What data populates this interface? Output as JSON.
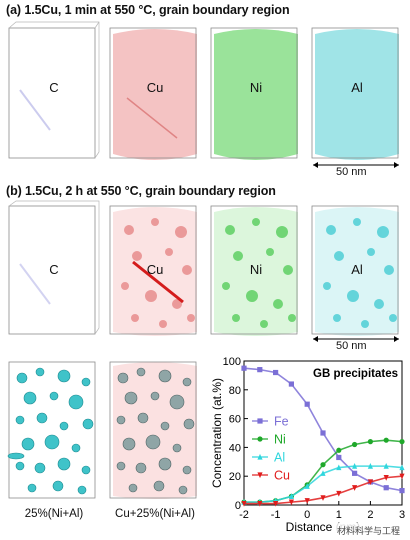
{
  "panel_a": {
    "title": "(a) 1.5Cu, 1 min at 550 °C, grain boundary region",
    "boxes": [
      {
        "label": "C",
        "color": "#6d6dcf"
      },
      {
        "label": "Cu",
        "color": "#e46b6b"
      },
      {
        "label": "Ni",
        "color": "#3fbf45"
      },
      {
        "label": "Al",
        "color": "#45c8cf"
      }
    ],
    "scalebar": "50 nm"
  },
  "panel_b": {
    "title": "(b) 1.5Cu, 2 h at 550 °C, grain boundary region",
    "boxes": [
      {
        "label": "C",
        "color": "#6d6dcf"
      },
      {
        "label": "Cu",
        "color": "#e44848"
      },
      {
        "label": "Ni",
        "color": "#3fbf45"
      },
      {
        "label": "Al",
        "color": "#38c3cc"
      }
    ],
    "scalebar": "50 nm",
    "isosurfaces": [
      {
        "caption": "25%(Ni+Al)"
      },
      {
        "caption": "Cu+25%(Ni+Al)"
      }
    ]
  },
  "watermark": "材料科学与工程",
  "chart_data": {
    "type": "line",
    "title": "GB precipitates",
    "xlabel": "Distance (nm)",
    "ylabel": "Concentration (at.%)",
    "xlim": [
      -2,
      3
    ],
    "ylim": [
      0,
      100
    ],
    "xticks": [
      "-2",
      "-1",
      "0",
      "1",
      "2",
      "3"
    ],
    "yticks": [
      "0",
      "20",
      "40",
      "60",
      "80",
      "100"
    ],
    "series": [
      {
        "name": "Fe",
        "color": "#7b6fd6",
        "marker": "square",
        "x": [
          -2,
          -1.5,
          -1,
          -0.5,
          0,
          0.5,
          1,
          1.5,
          2,
          2.5,
          3
        ],
        "y": [
          95,
          94,
          92,
          84,
          70,
          50,
          33,
          22,
          16,
          12,
          10
        ]
      },
      {
        "name": "Ni",
        "color": "#1fa82a",
        "marker": "circle",
        "x": [
          -2,
          -1.5,
          -1,
          -0.5,
          0,
          0.5,
          1,
          1.5,
          2,
          2.5,
          3
        ],
        "y": [
          2,
          2,
          3,
          6,
          14,
          28,
          38,
          42,
          44,
          45,
          44
        ]
      },
      {
        "name": "Al",
        "color": "#2fd6dd",
        "marker": "triangle",
        "x": [
          -2,
          -1.5,
          -1,
          -0.5,
          0,
          0.5,
          1,
          1.5,
          2,
          2.5,
          3
        ],
        "y": [
          2,
          2,
          3,
          6,
          13,
          22,
          26,
          27,
          27,
          27,
          26
        ]
      },
      {
        "name": "Cu",
        "color": "#e01d1d",
        "marker": "triangle-down",
        "x": [
          -2,
          -1.5,
          -1,
          -0.5,
          0,
          0.5,
          1,
          1.5,
          2,
          2.5,
          3
        ],
        "y": [
          1,
          1,
          1,
          2,
          3,
          5,
          8,
          12,
          16,
          19,
          20
        ]
      }
    ]
  }
}
